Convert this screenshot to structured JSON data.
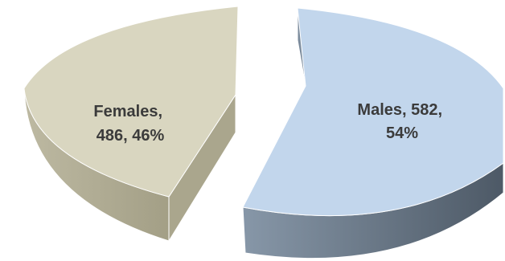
{
  "chart_data": {
    "type": "pie",
    "style": "3d-exploded",
    "slices": [
      {
        "name": "Males",
        "value": 582,
        "percent": 54,
        "color": "#c2d6ec",
        "side_color": "#6a7b8c",
        "label_lines": [
          "Males, 582,",
          "54%"
        ]
      },
      {
        "name": "Females",
        "value": 486,
        "percent": 46,
        "color": "#d9d6c0",
        "side_color": "#9e9a82",
        "label_lines": [
          "Females,",
          "486, 46%"
        ]
      }
    ]
  }
}
